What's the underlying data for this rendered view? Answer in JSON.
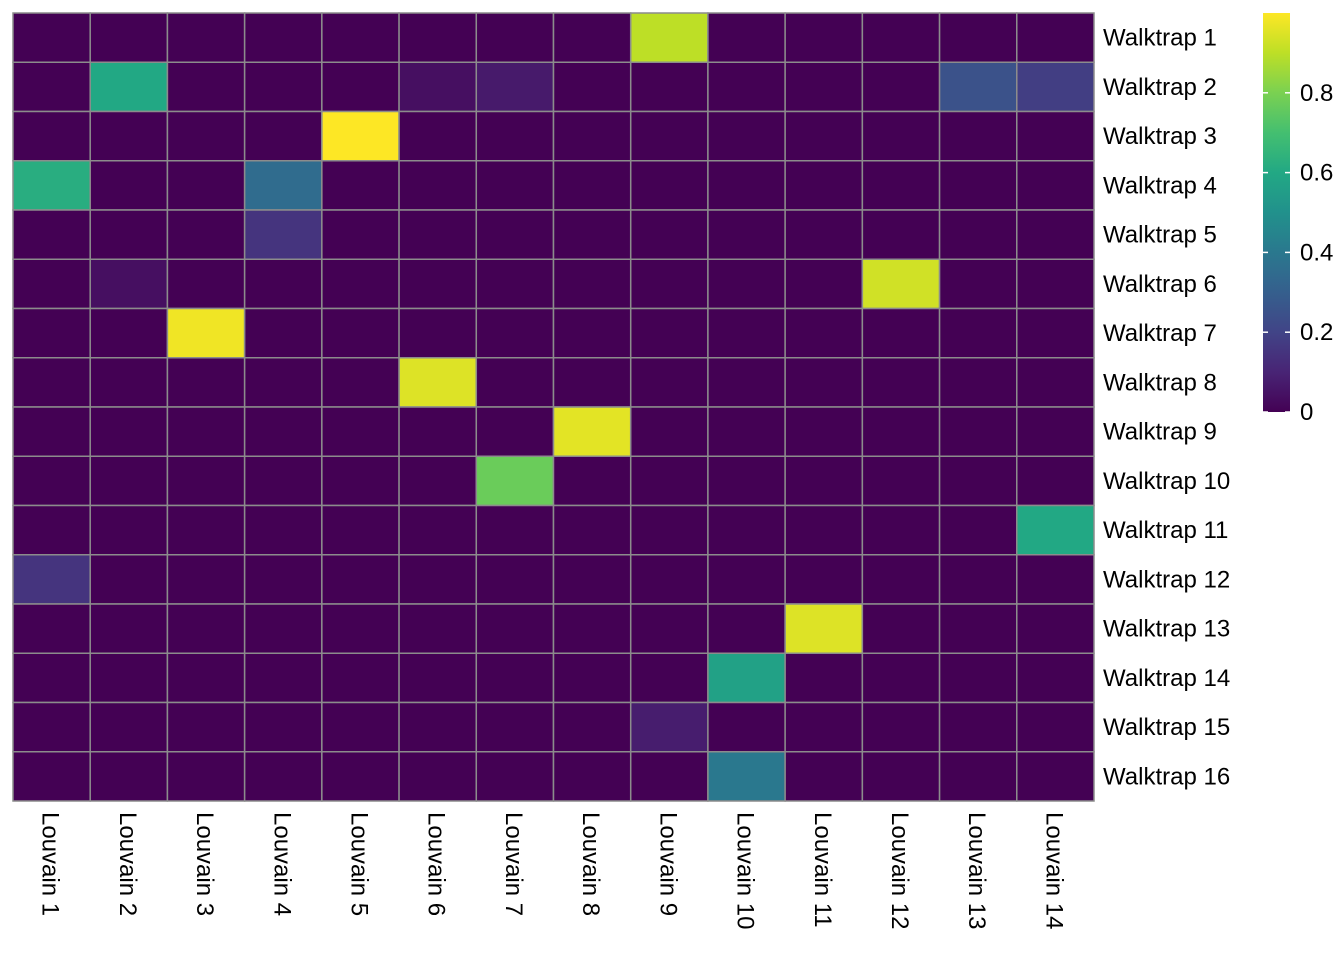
{
  "chart_data": {
    "type": "heatmap",
    "title": "",
    "xlabel": "",
    "ylabel": "",
    "colormap": "viridis",
    "grid_color": "#8c8c8c",
    "color_range": [
      0,
      1
    ],
    "colorbar_ticks": [
      "0",
      "0.2",
      "0.4",
      "0.6",
      "0.8"
    ],
    "colorbar_tick_values": [
      0,
      0.2,
      0.4,
      0.6,
      0.8
    ],
    "columns": [
      "Louvain 1",
      "Louvain 2",
      "Louvain 3",
      "Louvain 4",
      "Louvain 5",
      "Louvain 6",
      "Louvain 7",
      "Louvain 8",
      "Louvain 9",
      "Louvain 10",
      "Louvain 11",
      "Louvain 12",
      "Louvain 13",
      "Louvain 14"
    ],
    "rows": [
      "Walktrap 1",
      "Walktrap 2",
      "Walktrap 3",
      "Walktrap 4",
      "Walktrap 5",
      "Walktrap 6",
      "Walktrap 7",
      "Walktrap 8",
      "Walktrap 9",
      "Walktrap 10",
      "Walktrap 11",
      "Walktrap 12",
      "Walktrap 13",
      "Walktrap 14",
      "Walktrap 15",
      "Walktrap 16"
    ],
    "values": [
      [
        0,
        0,
        0,
        0,
        0,
        0,
        0,
        0,
        0.9,
        0,
        0,
        0,
        0,
        0
      ],
      [
        0,
        0.6,
        0,
        0,
        0,
        0.04,
        0.07,
        0,
        0,
        0,
        0,
        0,
        0.25,
        0.18
      ],
      [
        0,
        0,
        0,
        0,
        1.0,
        0,
        0,
        0,
        0,
        0,
        0,
        0,
        0,
        0
      ],
      [
        0.62,
        0,
        0,
        0.35,
        0,
        0,
        0,
        0,
        0,
        0,
        0,
        0,
        0,
        0
      ],
      [
        0,
        0,
        0,
        0.15,
        0,
        0,
        0,
        0,
        0,
        0,
        0,
        0,
        0,
        0
      ],
      [
        0,
        0.04,
        0,
        0,
        0,
        0,
        0,
        0,
        0,
        0,
        0,
        0.93,
        0,
        0
      ],
      [
        0,
        0,
        0.98,
        0,
        0,
        0,
        0,
        0,
        0,
        0,
        0,
        0,
        0,
        0
      ],
      [
        0,
        0,
        0,
        0,
        0,
        0.95,
        0,
        0,
        0,
        0,
        0,
        0,
        0,
        0
      ],
      [
        0,
        0,
        0,
        0,
        0,
        0,
        0,
        0.96,
        0,
        0,
        0,
        0,
        0,
        0
      ],
      [
        0,
        0,
        0,
        0,
        0,
        0,
        0.77,
        0,
        0,
        0,
        0,
        0,
        0,
        0
      ],
      [
        0,
        0,
        0,
        0,
        0,
        0,
        0,
        0,
        0,
        0,
        0,
        0,
        0,
        0.6
      ],
      [
        0.15,
        0,
        0,
        0,
        0,
        0,
        0,
        0,
        0,
        0,
        0,
        0,
        0,
        0
      ],
      [
        0,
        0,
        0,
        0,
        0,
        0,
        0,
        0,
        0,
        0,
        0.95,
        0,
        0,
        0
      ],
      [
        0,
        0,
        0,
        0,
        0,
        0,
        0,
        0,
        0,
        0.57,
        0,
        0,
        0,
        0
      ],
      [
        0,
        0,
        0,
        0,
        0,
        0,
        0,
        0,
        0.08,
        0,
        0,
        0,
        0,
        0
      ],
      [
        0,
        0,
        0,
        0,
        0,
        0,
        0,
        0,
        0,
        0.4,
        0,
        0,
        0,
        0
      ]
    ]
  }
}
